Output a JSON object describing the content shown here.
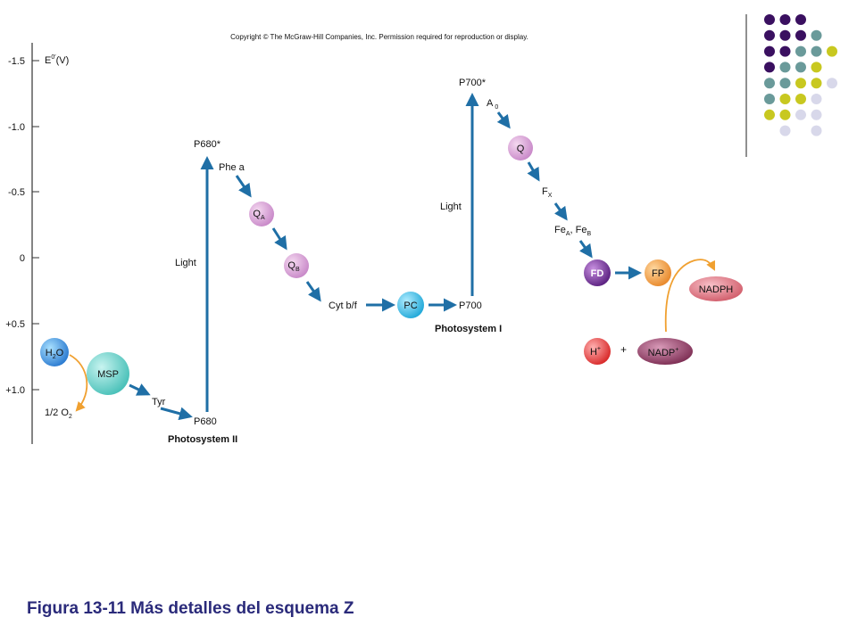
{
  "copyright": "Copyright © The McGraw-Hill Companies, Inc. Permission required for reproduction or display.",
  "axis": {
    "title_main": "E",
    "title_sup": "0′",
    "title_unit": "(V)",
    "ticks": [
      "-1.5",
      "-1.0",
      "-0.5",
      "0",
      "+0.5",
      "+1.0"
    ]
  },
  "nodes": {
    "h2o": {
      "pre": "H",
      "sub": "2",
      "post": "O"
    },
    "o2": {
      "pre": "1/2 O",
      "sub": "2"
    },
    "msp": "MSP",
    "tyr": "Tyr",
    "p680": "P680",
    "p680_star": "P680*",
    "light_ps2": "Light",
    "phe_a": "Phe a",
    "qa": {
      "main": "Q",
      "sub": "A"
    },
    "qb": {
      "main": "Q",
      "sub": "B"
    },
    "cyt": "Cyt b/f",
    "pc": "PC",
    "p700": "P700",
    "p700_star": "P700*",
    "light_ps1": "Light",
    "a0": {
      "main": "A",
      "sub": "0"
    },
    "q": "Q",
    "fx": {
      "main": "F",
      "sub": "X"
    },
    "fea_feb": {
      "a": "Fe",
      "a_sub": "A",
      "sep": ", ",
      "b": "Fe",
      "b_sub": "B"
    },
    "fd": "FD",
    "fp": "FP",
    "nadph": "NADPH",
    "hplus": {
      "main": "H",
      "sup": "+"
    },
    "plus": "+",
    "nadp": {
      "main": "NADP",
      "sup": "+"
    }
  },
  "photosystem_ii": "Photosystem II",
  "photosystem_i": "Photosystem I",
  "caption": "Figura 13-11 Más detalles del esquema Z",
  "colors": {
    "arrow": "#1f6fa6",
    "orange_arrow": "#f0a030",
    "purple": "#3a1060",
    "teal": "#6a9a9a",
    "yellow": "#c8c820",
    "lavender": "#d8d8ea",
    "pink_circle": "#d8a0d0",
    "cyan_circle": "#40b8e0",
    "fd": "#7a3a9a",
    "fp": "#f09a40",
    "nadph": "#e07a80",
    "hplus": "#e04040",
    "nadp": "#8a3a60"
  }
}
